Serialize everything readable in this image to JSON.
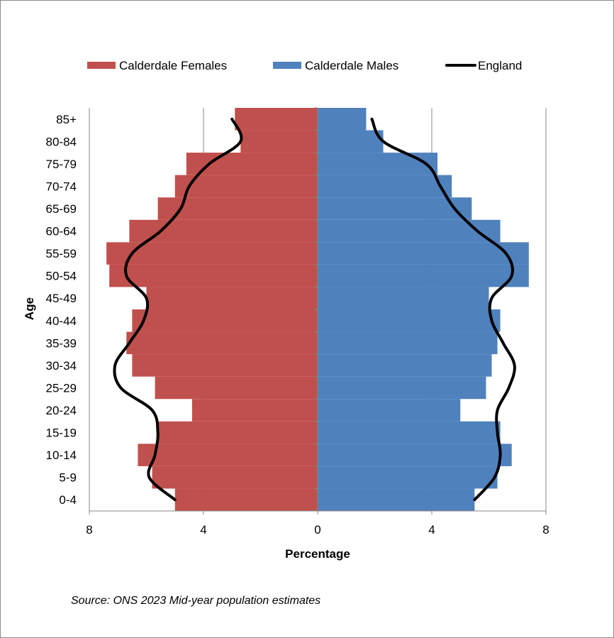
{
  "chart_data": {
    "type": "bar",
    "orientation": "horizontal",
    "layout": "population-pyramid",
    "categories": [
      "0-4",
      "5-9",
      "10-14",
      "15-19",
      "20-24",
      "25-29",
      "30-34",
      "35-39",
      "40-44",
      "45-49",
      "50-54",
      "55-59",
      "60-64",
      "65-69",
      "70-74",
      "75-79",
      "80-84",
      "85+"
    ],
    "series": [
      {
        "name": "Calderdale Females",
        "kind": "bar",
        "side": "left",
        "color": "#c0504d",
        "values": [
          5.0,
          5.8,
          6.3,
          5.6,
          4.4,
          5.7,
          6.5,
          6.7,
          6.5,
          6.0,
          7.3,
          7.4,
          6.6,
          5.6,
          5.0,
          4.6,
          2.7,
          2.9
        ]
      },
      {
        "name": "Calderdale Males",
        "kind": "bar",
        "side": "right",
        "color": "#4f81bd",
        "values": [
          5.5,
          6.3,
          6.8,
          6.4,
          5.0,
          5.9,
          6.1,
          6.3,
          6.4,
          6.0,
          7.4,
          7.4,
          6.4,
          5.4,
          4.7,
          4.2,
          2.3,
          1.7
        ]
      },
      {
        "name": "England",
        "kind": "line",
        "color": "#000000",
        "female": [
          5.0,
          5.9,
          5.7,
          5.6,
          5.8,
          6.9,
          7.1,
          6.6,
          6.1,
          6.0,
          6.7,
          6.5,
          5.5,
          4.8,
          4.5,
          3.8,
          2.7,
          3.0
        ],
        "male": [
          5.5,
          6.2,
          6.4,
          6.3,
          6.3,
          6.7,
          6.9,
          6.5,
          6.1,
          6.1,
          6.8,
          6.6,
          5.6,
          4.8,
          4.3,
          3.8,
          2.3,
          1.9
        ]
      }
    ],
    "xlabel": "Percentage",
    "ylabel": "Age",
    "x_ticks": [
      "8",
      "4",
      "0",
      "4",
      "8"
    ],
    "xlim": [
      -8,
      8
    ],
    "grid": "vertical gridlines at 4 and 8",
    "legend_position": "top"
  },
  "source_note": "Source: ONS 2023 Mid-year population estimates"
}
